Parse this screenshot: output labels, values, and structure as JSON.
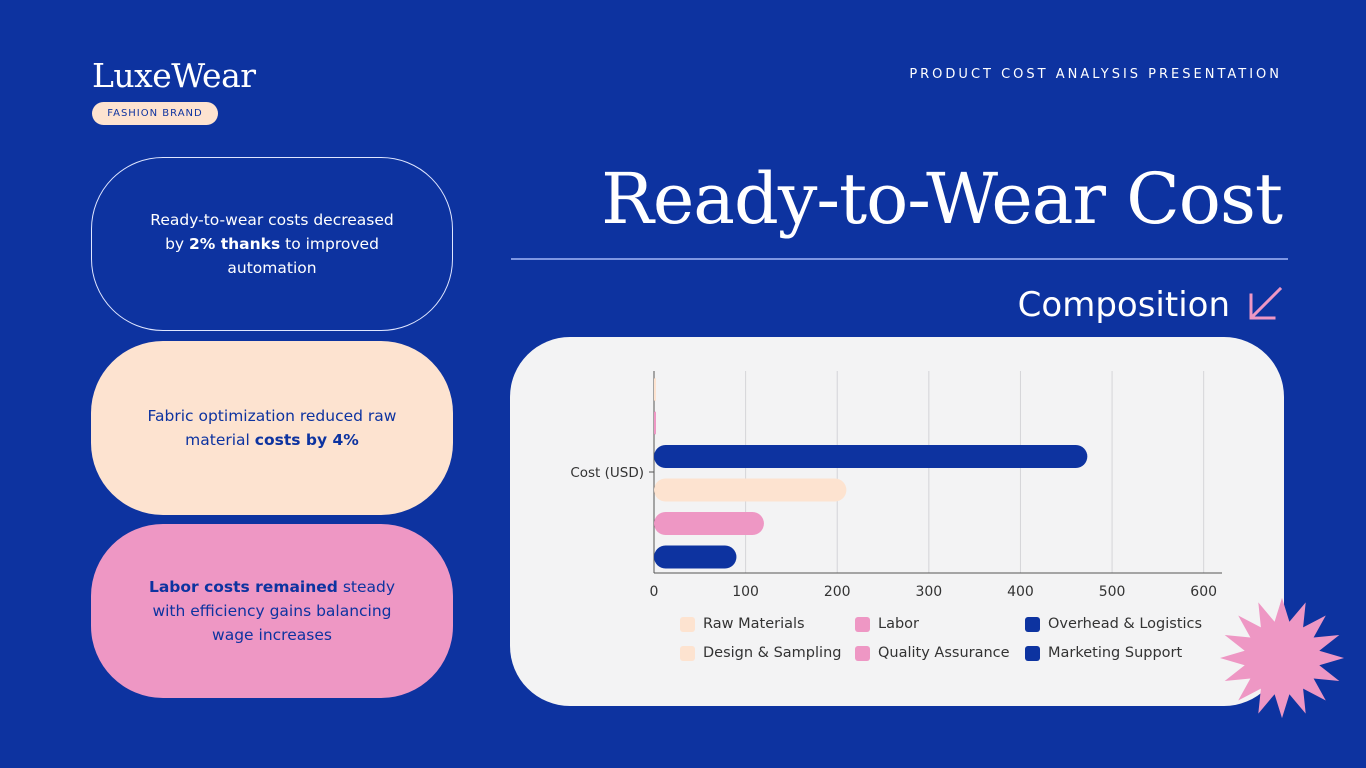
{
  "brand": {
    "name": "LuxeWear",
    "tag": "FASHION BRAND"
  },
  "header": {
    "text": "PRODUCT COST ANALYSIS PRESENTATION"
  },
  "title": "Ready-to-Wear Cost",
  "subtitle": "Composition",
  "icons": {
    "arrow": "arrow-down-left-icon",
    "decor": "starburst-icon"
  },
  "colors": {
    "background": "#0d33a0",
    "peach": "#fde3d0",
    "pink": "#ee97c4",
    "navy": "#0d33a0"
  },
  "cards": [
    {
      "pre": "Ready-to-wear costs decreased by ",
      "bold": "2% thanks",
      "post": " to improved automation"
    },
    {
      "pre": "Fabric optimization reduced raw material ",
      "bold": "costs by 4%",
      "post": ""
    },
    {
      "pre": "",
      "bold": "Labor costs remained",
      "post": " steady with efficiency gains balancing wage increases"
    }
  ],
  "chart_data": {
    "type": "bar",
    "orientation": "horizontal",
    "category_label": "Cost (USD)",
    "xlim": [
      0,
      620
    ],
    "xticks": [
      "0",
      "100",
      "200",
      "300",
      "400",
      "500",
      "600"
    ],
    "grid": true,
    "legend_position": "bottom",
    "series": [
      {
        "name": "Raw Materials",
        "value": 2,
        "color": "#fde3d0"
      },
      {
        "name": "Labor",
        "value": 2,
        "color": "#ee97c4"
      },
      {
        "name": "Overhead & Logistics",
        "value": 473,
        "color": "#0d33a0"
      },
      {
        "name": "Design & Sampling",
        "value": 210,
        "color": "#fde3d0"
      },
      {
        "name": "Quality Assurance",
        "value": 120,
        "color": "#ee97c4"
      },
      {
        "name": "Marketing Support",
        "value": 90,
        "color": "#0d33a0"
      }
    ]
  }
}
